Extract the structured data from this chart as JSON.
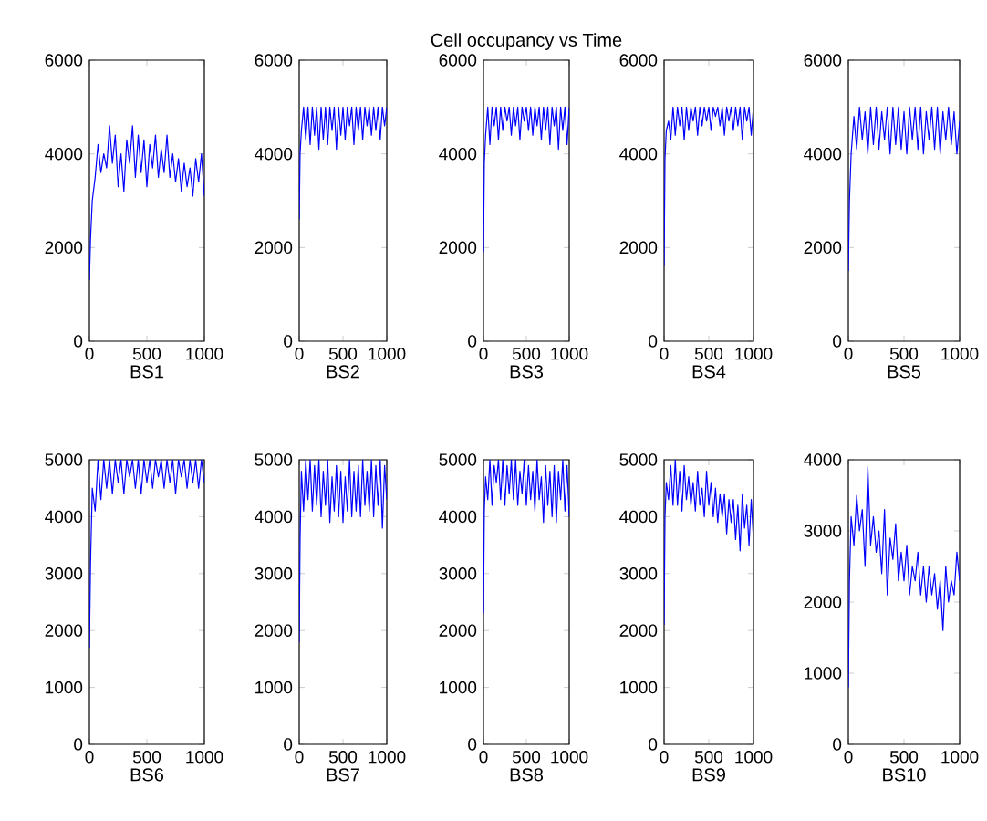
{
  "chart_data": [
    {
      "type": "line",
      "xlabel": "BS1",
      "xlim": [
        0,
        1000
      ],
      "ylim": [
        0,
        6000
      ],
      "xticks": [
        0,
        500,
        1000
      ],
      "yticks": [
        0,
        2000,
        4000,
        6000
      ],
      "x": [
        0,
        10,
        25,
        50,
        75,
        100,
        125,
        150,
        175,
        200,
        225,
        250,
        275,
        300,
        325,
        350,
        375,
        400,
        425,
        450,
        475,
        500,
        525,
        550,
        575,
        600,
        625,
        650,
        675,
        700,
        725,
        750,
        775,
        800,
        825,
        850,
        875,
        900,
        925,
        950,
        975,
        1000
      ],
      "series": [
        {
          "color": "#0000ff",
          "values": [
            1300,
            2200,
            3000,
            3500,
            4200,
            3600,
            4000,
            3700,
            4600,
            3800,
            4400,
            3300,
            4000,
            3200,
            4300,
            3800,
            4600,
            3500,
            4400,
            3600,
            4300,
            3300,
            4200,
            3700,
            4400,
            3500,
            4100,
            3600,
            4400,
            3500,
            4000,
            3400,
            3900,
            3200,
            3800,
            3300,
            3700,
            3100,
            3900,
            3400,
            4000,
            3100
          ]
        }
      ]
    },
    {
      "type": "line",
      "xlabel": "BS2",
      "xlim": [
        0,
        1000
      ],
      "ylim": [
        0,
        6000
      ],
      "xticks": [
        0,
        500,
        1000
      ],
      "yticks": [
        0,
        2000,
        4000,
        6000
      ],
      "x": [
        0,
        10,
        25,
        50,
        75,
        100,
        125,
        150,
        175,
        200,
        225,
        250,
        275,
        300,
        325,
        350,
        375,
        400,
        425,
        450,
        475,
        500,
        525,
        550,
        575,
        600,
        625,
        650,
        675,
        700,
        725,
        750,
        775,
        800,
        825,
        850,
        875,
        900,
        925,
        950,
        975,
        1000
      ],
      "series": [
        {
          "color": "#0000ff",
          "values": [
            2600,
            4000,
            4500,
            5000,
            4300,
            5000,
            4200,
            5000,
            4400,
            5000,
            4100,
            5000,
            4300,
            5000,
            4200,
            5000,
            4500,
            5000,
            4100,
            5000,
            4400,
            5000,
            4300,
            5000,
            4600,
            5000,
            4200,
            5000,
            4500,
            5000,
            4300,
            5000,
            4600,
            5000,
            4400,
            5000,
            4500,
            5000,
            4300,
            5000,
            4600,
            5000
          ]
        }
      ]
    },
    {
      "type": "line",
      "title": "Cell occupancy vs Time",
      "xlabel": "BS3",
      "xlim": [
        0,
        1000
      ],
      "ylim": [
        0,
        6000
      ],
      "xticks": [
        0,
        500,
        1000
      ],
      "yticks": [
        0,
        2000,
        4000,
        6000
      ],
      "x": [
        0,
        10,
        25,
        50,
        75,
        100,
        125,
        150,
        175,
        200,
        225,
        250,
        275,
        300,
        325,
        350,
        375,
        400,
        425,
        450,
        475,
        500,
        525,
        550,
        575,
        600,
        625,
        650,
        675,
        700,
        725,
        750,
        775,
        800,
        825,
        850,
        875,
        900,
        925,
        950,
        975,
        1000
      ],
      "series": [
        {
          "color": "#0000ff",
          "values": [
            1900,
            3800,
            4400,
            5000,
            4200,
            5000,
            4600,
            5000,
            4300,
            5000,
            4500,
            5000,
            4700,
            5000,
            4400,
            5000,
            4600,
            5000,
            4300,
            5000,
            4700,
            5000,
            4500,
            5000,
            4400,
            5000,
            4600,
            5000,
            4300,
            5000,
            4500,
            5000,
            4200,
            5000,
            4600,
            5000,
            4100,
            5000,
            4500,
            5000,
            4200,
            5000
          ]
        }
      ]
    },
    {
      "type": "line",
      "xlabel": "BS4",
      "xlim": [
        0,
        1000
      ],
      "ylim": [
        0,
        6000
      ],
      "xticks": [
        0,
        500,
        1000
      ],
      "yticks": [
        0,
        2000,
        4000,
        6000
      ],
      "x": [
        0,
        10,
        25,
        50,
        75,
        100,
        125,
        150,
        175,
        200,
        225,
        250,
        275,
        300,
        325,
        350,
        375,
        400,
        425,
        450,
        475,
        500,
        525,
        550,
        575,
        600,
        625,
        650,
        675,
        700,
        725,
        750,
        775,
        800,
        825,
        850,
        875,
        900,
        925,
        950,
        975,
        1000
      ],
      "series": [
        {
          "color": "#0000ff",
          "values": [
            1600,
            3900,
            4500,
            4700,
            4300,
            5000,
            4400,
            5000,
            4600,
            5000,
            4300,
            5000,
            4500,
            5000,
            4700,
            5000,
            4400,
            5000,
            4600,
            5000,
            4700,
            5000,
            4500,
            5000,
            4800,
            5000,
            4600,
            5000,
            4400,
            5000,
            4700,
            5000,
            4500,
            5000,
            4600,
            5000,
            4300,
            5000,
            4700,
            5000,
            4400,
            5000
          ]
        }
      ]
    },
    {
      "type": "line",
      "xlabel": "BS5",
      "xlim": [
        0,
        1000
      ],
      "ylim": [
        0,
        6000
      ],
      "xticks": [
        0,
        500,
        1000
      ],
      "yticks": [
        0,
        2000,
        4000,
        6000
      ],
      "x": [
        0,
        10,
        25,
        50,
        75,
        100,
        125,
        150,
        175,
        200,
        225,
        250,
        275,
        300,
        325,
        350,
        375,
        400,
        425,
        450,
        475,
        500,
        525,
        550,
        575,
        600,
        625,
        650,
        675,
        700,
        725,
        750,
        775,
        800,
        825,
        850,
        875,
        900,
        925,
        950,
        975,
        1000
      ],
      "series": [
        {
          "color": "#0000ff",
          "values": [
            1500,
            3000,
            4000,
            4800,
            4100,
            5000,
            4300,
            4900,
            4000,
            5000,
            4200,
            5000,
            4100,
            4900,
            4300,
            5000,
            4000,
            5000,
            4200,
            5000,
            4100,
            4900,
            4000,
            5000,
            4300,
            5000,
            4100,
            5000,
            4000,
            4900,
            4300,
            5000,
            4100,
            5000,
            4000,
            4900,
            4300,
            5000,
            4200,
            4900,
            4000,
            4700
          ]
        }
      ]
    },
    {
      "type": "line",
      "xlabel": "BS6",
      "xlim": [
        0,
        1000
      ],
      "ylim": [
        0,
        5000
      ],
      "xticks": [
        0,
        500,
        1000
      ],
      "yticks": [
        0,
        1000,
        2000,
        3000,
        4000,
        5000
      ],
      "x": [
        0,
        10,
        25,
        50,
        75,
        100,
        125,
        150,
        175,
        200,
        225,
        250,
        275,
        300,
        325,
        350,
        375,
        400,
        425,
        450,
        475,
        500,
        525,
        550,
        575,
        600,
        625,
        650,
        675,
        700,
        725,
        750,
        775,
        800,
        825,
        850,
        875,
        900,
        925,
        950,
        975,
        1000
      ],
      "series": [
        {
          "color": "#0000ff",
          "values": [
            1700,
            3200,
            4500,
            4100,
            5000,
            4300,
            5000,
            4500,
            5000,
            4400,
            5000,
            4600,
            5000,
            4400,
            5000,
            4700,
            5000,
            4500,
            5000,
            4400,
            5000,
            4600,
            5000,
            4500,
            5000,
            4700,
            5000,
            4500,
            5000,
            4600,
            5000,
            4400,
            5000,
            4700,
            5000,
            4500,
            5000,
            4600,
            5000,
            4500,
            5000,
            4600
          ]
        }
      ]
    },
    {
      "type": "line",
      "xlabel": "BS7",
      "xlim": [
        0,
        1000
      ],
      "ylim": [
        0,
        5000
      ],
      "xticks": [
        0,
        500,
        1000
      ],
      "yticks": [
        0,
        1000,
        2000,
        3000,
        4000,
        5000
      ],
      "x": [
        0,
        10,
        25,
        50,
        75,
        100,
        125,
        150,
        175,
        200,
        225,
        250,
        275,
        300,
        325,
        350,
        375,
        400,
        425,
        450,
        475,
        500,
        525,
        550,
        575,
        600,
        625,
        650,
        675,
        700,
        725,
        750,
        775,
        800,
        825,
        850,
        875,
        900,
        925,
        950,
        975,
        1000
      ],
      "series": [
        {
          "color": "#0000ff",
          "values": [
            1800,
            3600,
            4800,
            4100,
            5000,
            4300,
            5000,
            4100,
            4900,
            4200,
            5000,
            4000,
            4800,
            4200,
            5000,
            3900,
            4700,
            4100,
            4900,
            4000,
            4800,
            3900,
            4700,
            4100,
            5000,
            4000,
            4800,
            4100,
            4900,
            4000,
            5000,
            4200,
            4800,
            4100,
            5000,
            4000,
            4900,
            4200,
            5000,
            3800,
            4900,
            4300
          ]
        }
      ]
    },
    {
      "type": "line",
      "xlabel": "BS8",
      "xlim": [
        0,
        1000
      ],
      "ylim": [
        0,
        5000
      ],
      "xticks": [
        0,
        500,
        1000
      ],
      "yticks": [
        0,
        1000,
        2000,
        3000,
        4000,
        5000
      ],
      "x": [
        0,
        10,
        25,
        50,
        75,
        100,
        125,
        150,
        175,
        200,
        225,
        250,
        275,
        300,
        325,
        350,
        375,
        400,
        425,
        450,
        475,
        500,
        525,
        550,
        575,
        600,
        625,
        650,
        675,
        700,
        725,
        750,
        775,
        800,
        825,
        850,
        875,
        900,
        925,
        950,
        975,
        1000
      ],
      "series": [
        {
          "color": "#0000ff",
          "values": [
            2300,
            4100,
            4700,
            4300,
            5000,
            4200,
            4900,
            4600,
            5000,
            4300,
            5000,
            4200,
            4900,
            4400,
            5000,
            4300,
            5000,
            4200,
            4800,
            4400,
            5000,
            4200,
            4900,
            4300,
            4800,
            4100,
            5000,
            4300,
            4700,
            3900,
            4900,
            4200,
            4800,
            4000,
            4900,
            3900,
            4800,
            4300,
            5000,
            4100,
            4900,
            4000
          ]
        }
      ]
    },
    {
      "type": "line",
      "xlabel": "BS9",
      "xlim": [
        0,
        1000
      ],
      "ylim": [
        0,
        5000
      ],
      "xticks": [
        0,
        500,
        1000
      ],
      "yticks": [
        0,
        1000,
        2000,
        3000,
        4000,
        5000
      ],
      "x": [
        0,
        10,
        25,
        50,
        75,
        100,
        125,
        150,
        175,
        200,
        225,
        250,
        275,
        300,
        325,
        350,
        375,
        400,
        425,
        450,
        475,
        500,
        525,
        550,
        575,
        600,
        625,
        650,
        675,
        700,
        725,
        750,
        775,
        800,
        825,
        850,
        875,
        900,
        925,
        950,
        975,
        1000
      ],
      "series": [
        {
          "color": "#0000ff",
          "values": [
            2100,
            4000,
            4600,
            4300,
            4900,
            4200,
            5000,
            4200,
            4800,
            4100,
            4900,
            4300,
            4700,
            4200,
            4600,
            4100,
            4800,
            4200,
            4500,
            4000,
            4800,
            4200,
            4600,
            4000,
            4500,
            3900,
            4400,
            4000,
            4400,
            3700,
            4300,
            3900,
            4300,
            3600,
            4200,
            3400,
            4400,
            3800,
            4200,
            3500,
            4300,
            3600
          ]
        }
      ]
    },
    {
      "type": "line",
      "xlabel": "BS10",
      "xlim": [
        0,
        1000
      ],
      "ylim": [
        0,
        4000
      ],
      "xticks": [
        0,
        500,
        1000
      ],
      "yticks": [
        0,
        1000,
        2000,
        3000,
        4000
      ],
      "x": [
        0,
        10,
        25,
        50,
        75,
        100,
        125,
        150,
        175,
        200,
        225,
        250,
        275,
        300,
        325,
        350,
        375,
        400,
        425,
        450,
        475,
        500,
        525,
        550,
        575,
        600,
        625,
        650,
        675,
        700,
        725,
        750,
        775,
        800,
        825,
        850,
        875,
        900,
        925,
        950,
        975,
        1000
      ],
      "series": [
        {
          "color": "#0000ff",
          "values": [
            800,
            2300,
            3200,
            2800,
            3500,
            3000,
            3300,
            2500,
            3900,
            2800,
            3200,
            2700,
            3000,
            2400,
            3300,
            2100,
            2900,
            2600,
            3100,
            2300,
            2700,
            2300,
            2800,
            2100,
            2500,
            2300,
            2700,
            2100,
            2500,
            2000,
            2500,
            2100,
            2400,
            1900,
            2300,
            1600,
            2500,
            2000,
            2300,
            2100,
            2700,
            2300
          ]
        }
      ]
    }
  ]
}
